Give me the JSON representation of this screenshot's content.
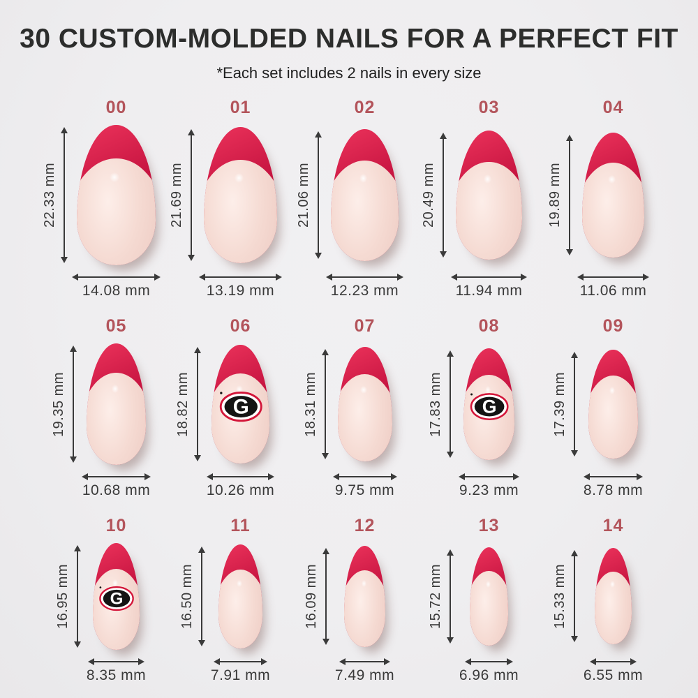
{
  "header": {
    "title": "30 CUSTOM-MOLDED NAILS FOR A PERFECT FIT",
    "subtitle": "*Each set includes 2 nails in every size"
  },
  "unit": "mm",
  "logo_name": "georgia-g-logo",
  "colors": {
    "bg": "#efeef0",
    "title": "#2c2d2c",
    "subtitle": "#1f1f1f",
    "size_label": "#b3545b",
    "measure": "#3a3a3a",
    "tip_light": "#e62e57",
    "tip": "#c71541",
    "tip_dark": "#9c0f33",
    "nude_light": "#fdeee9",
    "nude": "#f5dad2",
    "nude_mid": "#eecdc5",
    "nude_dark": "#dfb3a9",
    "logo_red": "#d31539",
    "logo_black": "#141414",
    "logo_white": "#ffffff"
  },
  "sizes": [
    {
      "id": "00",
      "height_label": "22.33 mm",
      "width_label": "14.08 mm",
      "height_mm": 22.33,
      "width_mm": 14.08,
      "logo": false
    },
    {
      "id": "01",
      "height_label": "21.69 mm",
      "width_label": "13.19 mm",
      "height_mm": 21.69,
      "width_mm": 13.19,
      "logo": false
    },
    {
      "id": "02",
      "height_label": "21.06 mm",
      "width_label": "12.23 mm",
      "height_mm": 21.06,
      "width_mm": 12.23,
      "logo": false
    },
    {
      "id": "03",
      "height_label": "20.49 mm",
      "width_label": "11.94 mm",
      "height_mm": 20.49,
      "width_mm": 11.94,
      "logo": false
    },
    {
      "id": "04",
      "height_label": "19.89 mm",
      "width_label": "11.06 mm",
      "height_mm": 19.89,
      "width_mm": 11.06,
      "logo": false
    },
    {
      "id": "05",
      "height_label": "19.35 mm",
      "width_label": "10.68 mm",
      "height_mm": 19.35,
      "width_mm": 10.68,
      "logo": false
    },
    {
      "id": "06",
      "height_label": "18.82 mm",
      "width_label": "10.26 mm",
      "height_mm": 18.82,
      "width_mm": 10.26,
      "logo": true
    },
    {
      "id": "07",
      "height_label": "18.31 mm",
      "width_label": "9.75 mm",
      "height_mm": 18.31,
      "width_mm": 9.75,
      "logo": false
    },
    {
      "id": "08",
      "height_label": "17.83 mm",
      "width_label": "9.23 mm",
      "height_mm": 17.83,
      "width_mm": 9.23,
      "logo": true
    },
    {
      "id": "09",
      "height_label": "17.39 mm",
      "width_label": "8.78 mm",
      "height_mm": 17.39,
      "width_mm": 8.78,
      "logo": false
    },
    {
      "id": "10",
      "height_label": "16.95 mm",
      "width_label": "8.35 mm",
      "height_mm": 16.95,
      "width_mm": 8.35,
      "logo": true
    },
    {
      "id": "11",
      "height_label": "16.50 mm",
      "width_label": "7.91 mm",
      "height_mm": 16.5,
      "width_mm": 7.91,
      "logo": false
    },
    {
      "id": "12",
      "height_label": "16.09 mm",
      "width_label": "7.49 mm",
      "height_mm": 16.09,
      "width_mm": 7.49,
      "logo": false
    },
    {
      "id": "13",
      "height_label": "15.72 mm",
      "width_label": "6.96 mm",
      "height_mm": 15.72,
      "width_mm": 6.96,
      "logo": false
    },
    {
      "id": "14",
      "height_label": "15.33 mm",
      "width_label": "6.55 mm",
      "height_mm": 15.33,
      "width_mm": 6.55,
      "logo": false
    }
  ]
}
